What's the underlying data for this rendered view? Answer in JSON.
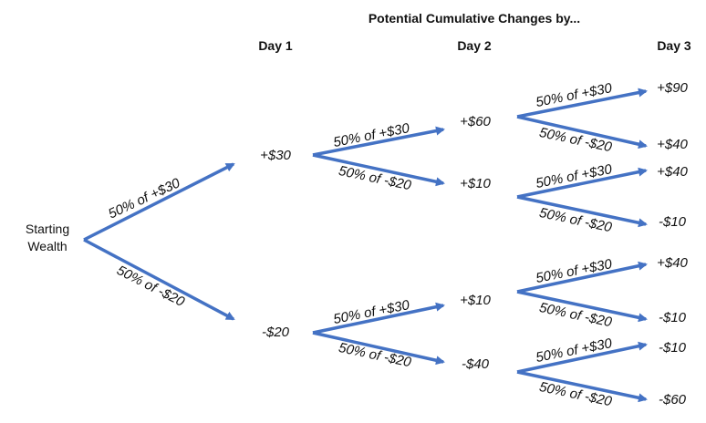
{
  "title": "Potential Cumulative Changes by...",
  "days": [
    "Day 1",
    "Day 2",
    "Day 3"
  ],
  "start": {
    "line1": "Starting",
    "line2": "Wealth"
  },
  "up_label": "50% of +$30",
  "down_label": "50% of -$20",
  "nodes": {
    "day1": [
      "+$30",
      "-$20"
    ],
    "day2": [
      "+$60",
      "+$10",
      "+$10",
      "-$40"
    ],
    "day3": [
      "+$90",
      "+$40",
      "+$40",
      "-$10",
      "+$40",
      "-$10",
      "-$10",
      "-$60"
    ]
  },
  "colors": {
    "arrow": "#4472C4",
    "text": "#111111"
  }
}
